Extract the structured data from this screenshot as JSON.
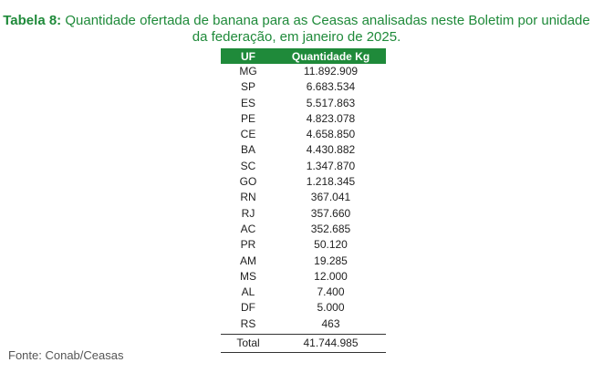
{
  "caption": {
    "label": "Tabela 8:",
    "text": " Quantidade ofertada de banana para as Ceasas analisadas neste Boletim por unidade da federação, em janeiro de 2025."
  },
  "table": {
    "headers": [
      "UF",
      "Quantidade Kg"
    ],
    "rows": [
      {
        "uf": "MG",
        "qty": "11.892.909"
      },
      {
        "uf": "SP",
        "qty": "6.683.534"
      },
      {
        "uf": "ES",
        "qty": "5.517.863"
      },
      {
        "uf": "PE",
        "qty": "4.823.078"
      },
      {
        "uf": "CE",
        "qty": "4.658.850"
      },
      {
        "uf": "BA",
        "qty": "4.430.882"
      },
      {
        "uf": "SC",
        "qty": "1.347.870"
      },
      {
        "uf": "GO",
        "qty": "1.218.345"
      },
      {
        "uf": "RN",
        "qty": "367.041"
      },
      {
        "uf": "RJ",
        "qty": "357.660"
      },
      {
        "uf": "AC",
        "qty": "352.685"
      },
      {
        "uf": "PR",
        "qty": "50.120"
      },
      {
        "uf": "AM",
        "qty": "19.285"
      },
      {
        "uf": "MS",
        "qty": "12.000"
      },
      {
        "uf": "AL",
        "qty": "7.400"
      },
      {
        "uf": "DF",
        "qty": "5.000"
      },
      {
        "uf": "RS",
        "qty": "463"
      }
    ],
    "total": {
      "label": "Total",
      "qty": "41.744.985"
    }
  },
  "source": "Fonte: Conab/Ceasas",
  "colors": {
    "header_bg": "#1f8a3a",
    "caption_text": "#1f8a3a"
  }
}
